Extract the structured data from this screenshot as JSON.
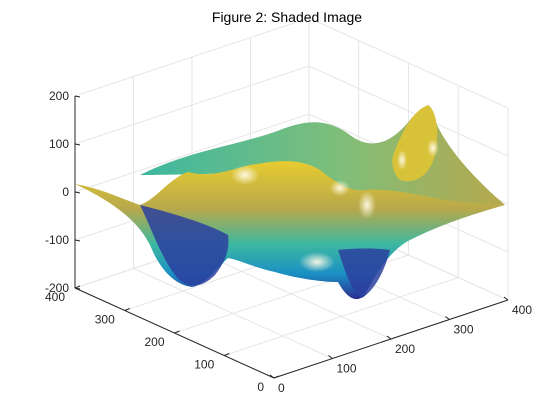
{
  "chart_data": {
    "type": "surface",
    "title": "Figure 2: Shaded Image",
    "xlabel": "",
    "ylabel": "",
    "zlabel": "",
    "x_ticks": [
      0,
      100,
      200,
      300,
      400
    ],
    "y_ticks": [
      0,
      100,
      200,
      300,
      400
    ],
    "z_ticks": [
      -200,
      -100,
      0,
      100,
      200
    ],
    "xlim": [
      0,
      400
    ],
    "ylim": [
      0,
      400
    ],
    "zlim": [
      -200,
      200
    ],
    "grid": true,
    "colormap": "parula",
    "lighting": "shaded",
    "surface_z_sample": {
      "x_values": [
        0,
        100,
        200,
        300,
        400
      ],
      "y_values": [
        0,
        100,
        200,
        300,
        400
      ],
      "z_rows": [
        [
          -40,
          -190,
          -10,
          10,
          30
        ],
        [
          -60,
          -200,
          -40,
          110,
          60
        ],
        [
          -20,
          -150,
          -20,
          40,
          20
        ],
        [
          20,
          -70,
          30,
          80,
          50
        ],
        [
          60,
          20,
          70,
          110,
          90
        ]
      ]
    },
    "colors": {
      "low": "#2b2d8f",
      "mid_low": "#1a8fc4",
      "mid": "#3db8a0",
      "mid_high": "#b7a84c",
      "high": "#e7cc2f",
      "highlight": "#fffbe6"
    }
  }
}
